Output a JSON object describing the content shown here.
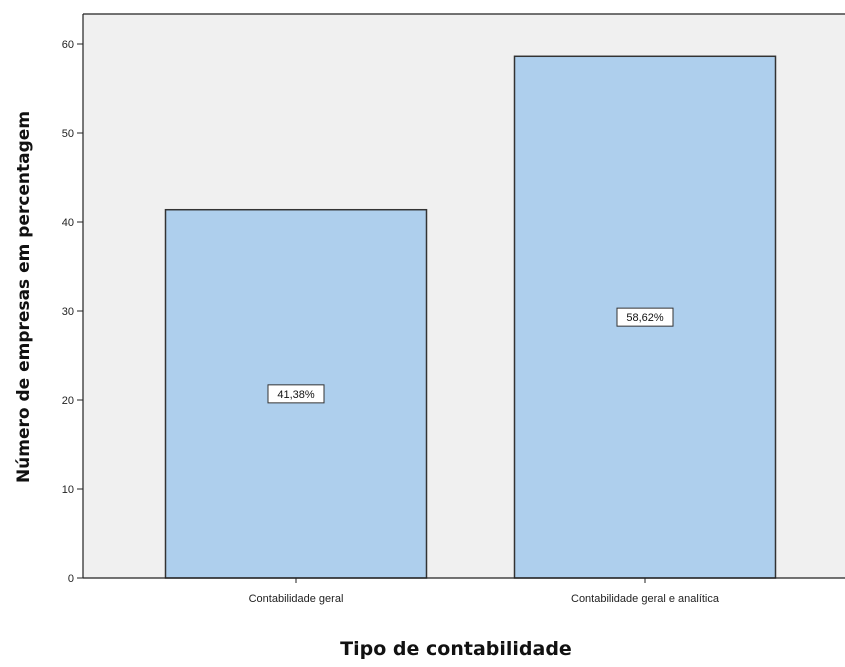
{
  "chart_data": {
    "type": "bar",
    "title": "",
    "xlabel": "Tipo de contabilidade",
    "ylabel": "Número de empresas em percentagem",
    "categories": [
      "Contabilidade geral",
      "Contabilidade geral e analítica"
    ],
    "values": [
      41.38,
      58.62
    ],
    "data_labels": [
      "41,38%",
      "58,62%"
    ],
    "ylim": [
      0,
      60
    ],
    "yticks": [
      0,
      10,
      20,
      30,
      40,
      50,
      60
    ],
    "grid": false,
    "legend": "none",
    "colors": {
      "plot_background": "#f0f0f0",
      "bar_fill": "#aecfed",
      "bar_stroke": "#333333",
      "frame": "#222222"
    }
  }
}
